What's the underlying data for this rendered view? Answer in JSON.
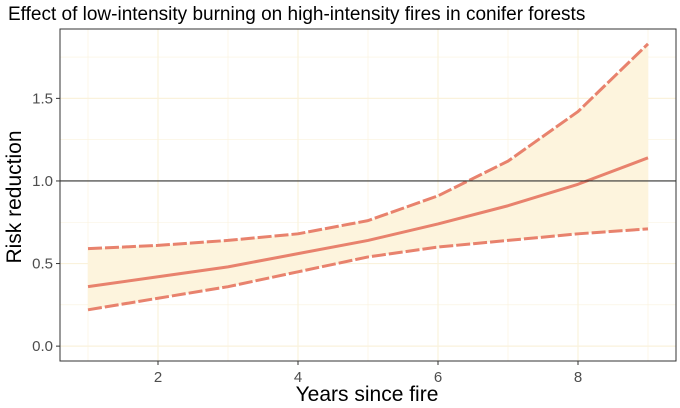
{
  "chart_data": {
    "type": "line",
    "title": "Effect of low-intensity burning on high-intensity fires in conifer forests",
    "xlabel": "Years since fire",
    "ylabel": "Risk reduction",
    "xlim": [
      0.6,
      9.4
    ],
    "ylim": [
      -0.09,
      1.92
    ],
    "xticks": [
      2,
      4,
      6,
      8
    ],
    "yticks": [
      0.0,
      0.5,
      1.0,
      1.5
    ],
    "ytick_labels": [
      "0.0",
      "0.5",
      "1.0",
      "1.5"
    ],
    "grid": true,
    "reference_line": {
      "y": 1.0,
      "color": "#333333"
    },
    "x": [
      1,
      2,
      3,
      4,
      5,
      6,
      7,
      8,
      9
    ],
    "series": [
      {
        "role": "estimate",
        "values": [
          0.36,
          0.42,
          0.48,
          0.56,
          0.64,
          0.74,
          0.85,
          0.98,
          1.14
        ],
        "style": "solid"
      },
      {
        "role": "upper",
        "values": [
          0.59,
          0.61,
          0.64,
          0.68,
          0.76,
          0.91,
          1.12,
          1.42,
          1.83
        ],
        "style": "dashed"
      },
      {
        "role": "lower",
        "values": [
          0.22,
          0.29,
          0.36,
          0.45,
          0.54,
          0.6,
          0.64,
          0.68,
          0.71
        ],
        "style": "dashed"
      }
    ],
    "colors": {
      "line": "#e8826d",
      "ribbon": "#fdf4dd",
      "panel": "#ffffff",
      "grid": "#faf2dc",
      "border": "#333333"
    }
  }
}
